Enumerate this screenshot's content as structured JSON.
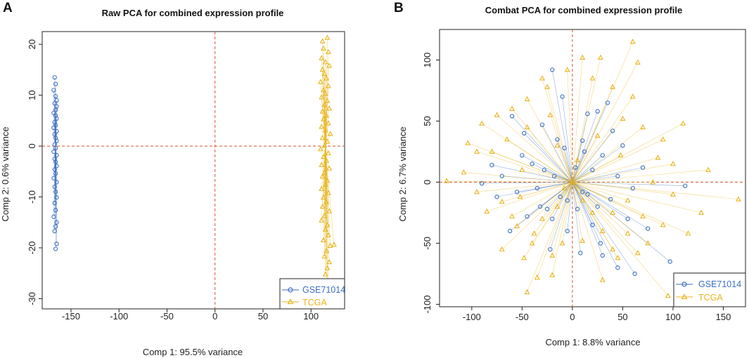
{
  "figure": {
    "panels": [
      "A",
      "B"
    ]
  },
  "chart_data": [
    {
      "type": "scatter",
      "panel_label": "A",
      "title": "Raw PCA for combined expression profile",
      "xlabel": "Comp 1: 95.5% variance",
      "ylabel": "Comp 2: 0.6% variance",
      "xlim": [
        -180,
        135
      ],
      "ylim": [
        -32,
        22.5
      ],
      "xticks": [
        -150,
        -100,
        -50,
        0,
        50,
        100
      ],
      "xtick_labels": [
        "-150",
        "-100",
        "-50",
        "0",
        "50",
        "100"
      ],
      "yticks": [
        -30,
        -20,
        -10,
        0,
        10,
        20
      ],
      "ytick_labels": [
        "-30",
        "-20",
        "-10",
        "0",
        "10",
        "20"
      ],
      "reference_lines": {
        "x": 0,
        "y": 0,
        "color": "#d9542c"
      },
      "legend": {
        "position": "bottom-right",
        "entries": [
          "GSE71014",
          "TCGA"
        ]
      },
      "series": [
        {
          "name": "GSE71014",
          "marker": "circle",
          "color": "#3c6fc0",
          "centroid": [
            -166,
            0
          ],
          "points": [
            [
              -167,
              13.5
            ],
            [
              -166,
              12.2
            ],
            [
              -168,
              11
            ],
            [
              -166,
              9.8
            ],
            [
              -165,
              9
            ],
            [
              -167,
              8.4
            ],
            [
              -165,
              7.8
            ],
            [
              -166,
              7.1
            ],
            [
              -168,
              6.5
            ],
            [
              -166,
              6
            ],
            [
              -165,
              5.4
            ],
            [
              -167,
              4.7
            ],
            [
              -166,
              4.1
            ],
            [
              -168,
              3.6
            ],
            [
              -165,
              2.9
            ],
            [
              -167,
              2.3
            ],
            [
              -166,
              1.6
            ],
            [
              -165,
              1
            ],
            [
              -167,
              0.3
            ],
            [
              -166,
              -0.4
            ],
            [
              -168,
              -1.1
            ],
            [
              -165,
              -1.8
            ],
            [
              -167,
              -2.5
            ],
            [
              -166,
              -3.1
            ],
            [
              -165,
              -3.9
            ],
            [
              -167,
              -4.6
            ],
            [
              -166,
              -5.4
            ],
            [
              -168,
              -6.3
            ],
            [
              -165,
              -7.1
            ],
            [
              -167,
              -8
            ],
            [
              -166,
              -9
            ],
            [
              -165,
              -10.1
            ],
            [
              -167,
              -11.2
            ],
            [
              -166,
              -12.6
            ],
            [
              -168,
              -13.9
            ],
            [
              -165,
              -15
            ],
            [
              -166,
              -15.8
            ],
            [
              -167,
              -16.7
            ],
            [
              -165,
              -19.2
            ],
            [
              -166,
              -20.2
            ]
          ]
        },
        {
          "name": "TCGA",
          "marker": "triangle",
          "color": "#e8b51e",
          "centroid": [
            115,
            -0.2
          ],
          "points": [
            [
              117,
              21.3
            ],
            [
              112,
              20.6
            ],
            [
              113,
              19.2
            ],
            [
              118,
              18.5
            ],
            [
              111,
              17.3
            ],
            [
              115,
              16.5
            ],
            [
              119,
              15.8
            ],
            [
              112,
              15
            ],
            [
              114,
              14.2
            ],
            [
              116,
              13.3
            ],
            [
              110,
              12.6
            ],
            [
              118,
              11.8
            ],
            [
              113,
              11
            ],
            [
              115,
              10.3
            ],
            [
              111,
              9.6
            ],
            [
              117,
              8.9
            ],
            [
              114,
              8.1
            ],
            [
              119,
              7.4
            ],
            [
              112,
              6.8
            ],
            [
              116,
              6
            ],
            [
              113,
              5.3
            ],
            [
              118,
              4.5
            ],
            [
              111,
              3.8
            ],
            [
              115,
              3.1
            ],
            [
              120,
              2.4
            ],
            [
              112,
              1.6
            ],
            [
              117,
              0.9
            ],
            [
              114,
              0.1
            ],
            [
              110,
              -0.6
            ],
            [
              118,
              -1.4
            ],
            [
              113,
              -2.1
            ],
            [
              116,
              -2.9
            ],
            [
              111,
              -3.7
            ],
            [
              119,
              -4.4
            ],
            [
              114,
              -5.2
            ],
            [
              112,
              -6
            ],
            [
              117,
              -6.8
            ],
            [
              115,
              -7.6
            ],
            [
              111,
              -8.4
            ],
            [
              118,
              -9.2
            ],
            [
              113,
              -10.1
            ],
            [
              116,
              -11
            ],
            [
              112,
              -11.9
            ],
            [
              119,
              -12.8
            ],
            [
              114,
              -13.7
            ],
            [
              111,
              -14.6
            ],
            [
              117,
              -15.5
            ],
            [
              115,
              -16.4
            ],
            [
              118,
              -17.5
            ],
            [
              113,
              -18.5
            ],
            [
              120,
              -19.6
            ],
            [
              116,
              -20.6
            ],
            [
              114,
              -21.7
            ],
            [
              119,
              -22.8
            ],
            [
              117,
              -24
            ],
            [
              115,
              -25.2
            ],
            [
              118,
              -26.5
            ],
            [
              116,
              -27.9
            ],
            [
              117,
              -29
            ],
            [
              124,
              -19.4
            ]
          ]
        }
      ]
    },
    {
      "type": "scatter",
      "panel_label": "B",
      "title": "Combat PCA for combined expression profile",
      "xlabel": "Comp 1: 8.8% variance",
      "ylabel": "Comp 2: 6.7% variance",
      "xlim": [
        -132,
        172
      ],
      "ylim": [
        -102,
        125
      ],
      "xticks": [
        -100,
        -50,
        0,
        50,
        100,
        150
      ],
      "xtick_labels": [
        "-100",
        "-50",
        "0",
        "50",
        "100",
        "150"
      ],
      "yticks": [
        -100,
        -50,
        0,
        50,
        100
      ],
      "ytick_labels": [
        "-100",
        "-50",
        "0",
        "50",
        "100"
      ],
      "reference_lines": {
        "x": 0,
        "y": 0,
        "color": "#d9542c"
      },
      "legend": {
        "position": "bottom-right",
        "entries": [
          "GSE71014",
          "TCGA"
        ]
      },
      "series": [
        {
          "name": "GSE71014",
          "marker": "circle",
          "color": "#3c6fc0",
          "centroid": [
            0,
            0
          ],
          "points": [
            [
              -20,
              92
            ],
            [
              -60,
              54
            ],
            [
              -30,
              47
            ],
            [
              -15,
              35
            ],
            [
              15,
              56
            ],
            [
              25,
              58
            ],
            [
              40,
              42
            ],
            [
              50,
              30
            ],
            [
              -80,
              14
            ],
            [
              -50,
              22
            ],
            [
              -40,
              15
            ],
            [
              -28,
              10
            ],
            [
              -8,
              28
            ],
            [
              10,
              34
            ],
            [
              30,
              22
            ],
            [
              20,
              10
            ],
            [
              45,
              5
            ],
            [
              60,
              -5
            ],
            [
              112,
              -3
            ],
            [
              -90,
              -1
            ],
            [
              -75,
              -12
            ],
            [
              -55,
              -8
            ],
            [
              -32,
              -20
            ],
            [
              -20,
              -30
            ],
            [
              -5,
              -40
            ],
            [
              5,
              -22
            ],
            [
              20,
              -35
            ],
            [
              28,
              -50
            ],
            [
              45,
              -70
            ],
            [
              62,
              -75
            ],
            [
              75,
              -38
            ],
            [
              97,
              -65
            ],
            [
              55,
              -30
            ],
            [
              38,
              -14
            ],
            [
              10,
              -8
            ],
            [
              -12,
              -12
            ],
            [
              -45,
              -28
            ],
            [
              -62,
              -40
            ],
            [
              -22,
              -55
            ],
            [
              35,
              65
            ],
            [
              -10,
              70
            ],
            [
              8,
              -58
            ],
            [
              -35,
              -5
            ],
            [
              25,
              -20
            ],
            [
              -70,
              5
            ],
            [
              3,
              12
            ],
            [
              -5,
              -15
            ],
            [
              15,
              -10
            ],
            [
              -18,
              5
            ],
            [
              12,
              25
            ],
            [
              30,
              -60
            ],
            [
              -25,
              -22
            ],
            [
              70,
              12
            ],
            [
              -48,
              40
            ]
          ]
        },
        {
          "name": "TCGA",
          "marker": "triangle",
          "color": "#e8b51e",
          "centroid": [
            0,
            0
          ],
          "points": [
            [
              60,
              115
            ],
            [
              65,
              98
            ],
            [
              10,
              102
            ],
            [
              28,
              102
            ],
            [
              -25,
              78
            ],
            [
              -45,
              68
            ],
            [
              -60,
              60
            ],
            [
              -75,
              55
            ],
            [
              -90,
              48
            ],
            [
              -104,
              32
            ],
            [
              -108,
              8
            ],
            [
              -125,
              1
            ],
            [
              -95,
              -8
            ],
            [
              -85,
              -24
            ],
            [
              -70,
              -16
            ],
            [
              -55,
              -36
            ],
            [
              -40,
              -50
            ],
            [
              -48,
              -62
            ],
            [
              -35,
              -78
            ],
            [
              -45,
              -90
            ],
            [
              -20,
              -60
            ],
            [
              -10,
              -50
            ],
            [
              10,
              -48
            ],
            [
              40,
              -55
            ],
            [
              55,
              -42
            ],
            [
              75,
              -50
            ],
            [
              90,
              -35
            ],
            [
              95,
              -93
            ],
            [
              165,
              -14
            ],
            [
              128,
              -25
            ],
            [
              115,
              -42
            ],
            [
              80,
              0
            ],
            [
              100,
              15
            ],
            [
              90,
              35
            ],
            [
              70,
              45
            ],
            [
              60,
              70
            ],
            [
              40,
              78
            ],
            [
              20,
              85
            ],
            [
              -5,
              92
            ],
            [
              -30,
              85
            ],
            [
              -45,
              45
            ],
            [
              -65,
              35
            ],
            [
              -80,
              25
            ],
            [
              -50,
              10
            ],
            [
              -30,
              -30
            ],
            [
              -60,
              -28
            ],
            [
              -70,
              -55
            ],
            [
              -20,
              -76
            ],
            [
              30,
              -80
            ],
            [
              45,
              -62
            ],
            [
              65,
              -58
            ],
            [
              30,
              -40
            ],
            [
              20,
              -25
            ],
            [
              10,
              -15
            ],
            [
              -15,
              -20
            ],
            [
              -38,
              -42
            ],
            [
              40,
              -25
            ],
            [
              55,
              -15
            ],
            [
              100,
              -10
            ],
            [
              85,
              20
            ],
            [
              5,
              18
            ],
            [
              -15,
              30
            ],
            [
              25,
              38
            ],
            [
              50,
              52
            ],
            [
              -22,
              55
            ],
            [
              -8,
              -5
            ],
            [
              -52,
              -12
            ],
            [
              70,
              -28
            ],
            [
              -95,
              25
            ],
            [
              110,
              48
            ],
            [
              135,
              10
            ],
            [
              48,
              22
            ]
          ]
        }
      ]
    }
  ]
}
